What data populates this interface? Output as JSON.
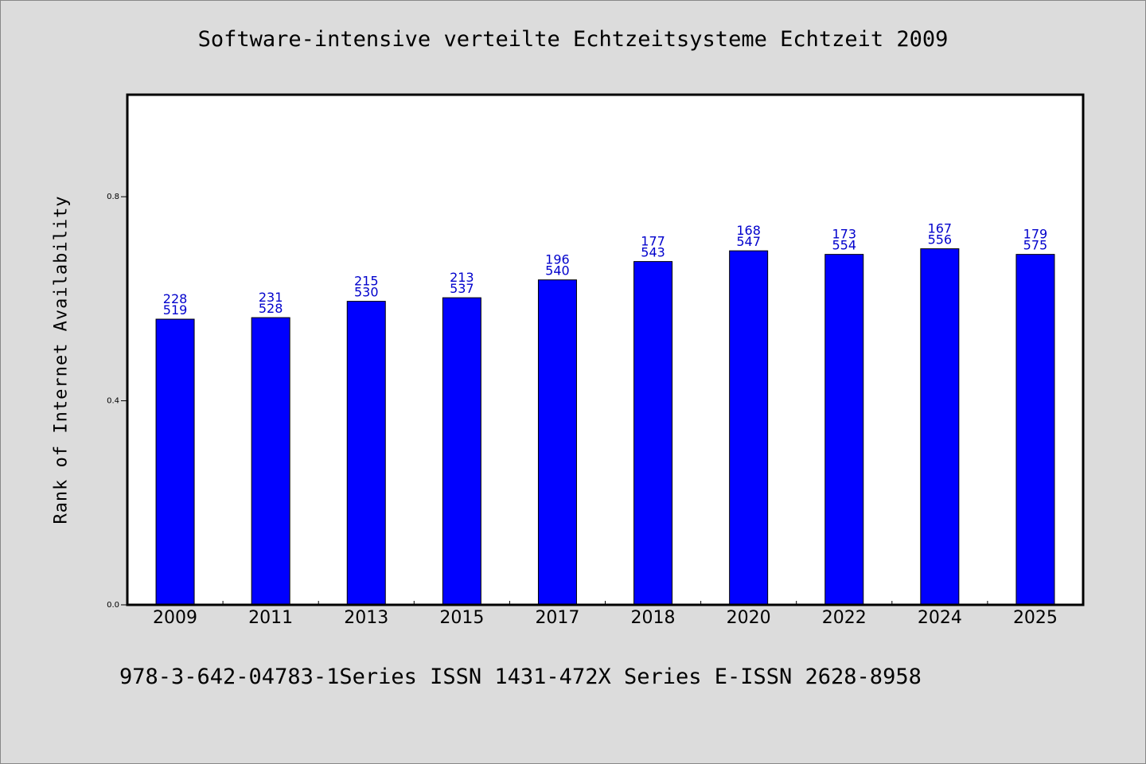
{
  "chart_data": {
    "type": "bar",
    "title": "Software-intensive verteilte Echtzeitsysteme Echtzeit 2009",
    "ylabel": "Rank of Internet Availability",
    "xlabel": "",
    "categories": [
      "2009",
      "2011",
      "2013",
      "2015",
      "2017",
      "2018",
      "2020",
      "2022",
      "2024",
      "2025"
    ],
    "values": [
      0.56,
      0.563,
      0.595,
      0.602,
      0.637,
      0.673,
      0.694,
      0.687,
      0.698,
      0.687
    ],
    "labels_top": [
      "228",
      "231",
      "215",
      "213",
      "196",
      "177",
      "168",
      "173",
      "167",
      "179"
    ],
    "labels_bottom": [
      "519",
      "528",
      "530",
      "537",
      "540",
      "543",
      "547",
      "554",
      "556",
      "575"
    ],
    "ylim": [
      0,
      1.0
    ],
    "yticks": [
      0.0,
      0.4,
      0.8
    ],
    "ytick_labels": [
      "0.0",
      "0.4",
      "0.8"
    ],
    "grid": false,
    "legend": "none",
    "bar_color": "#0000ff",
    "label_color": "#0000cc"
  },
  "footer": "978-3-642-04783-1Series ISSN 1431-472X Series E-ISSN 2628-8958"
}
